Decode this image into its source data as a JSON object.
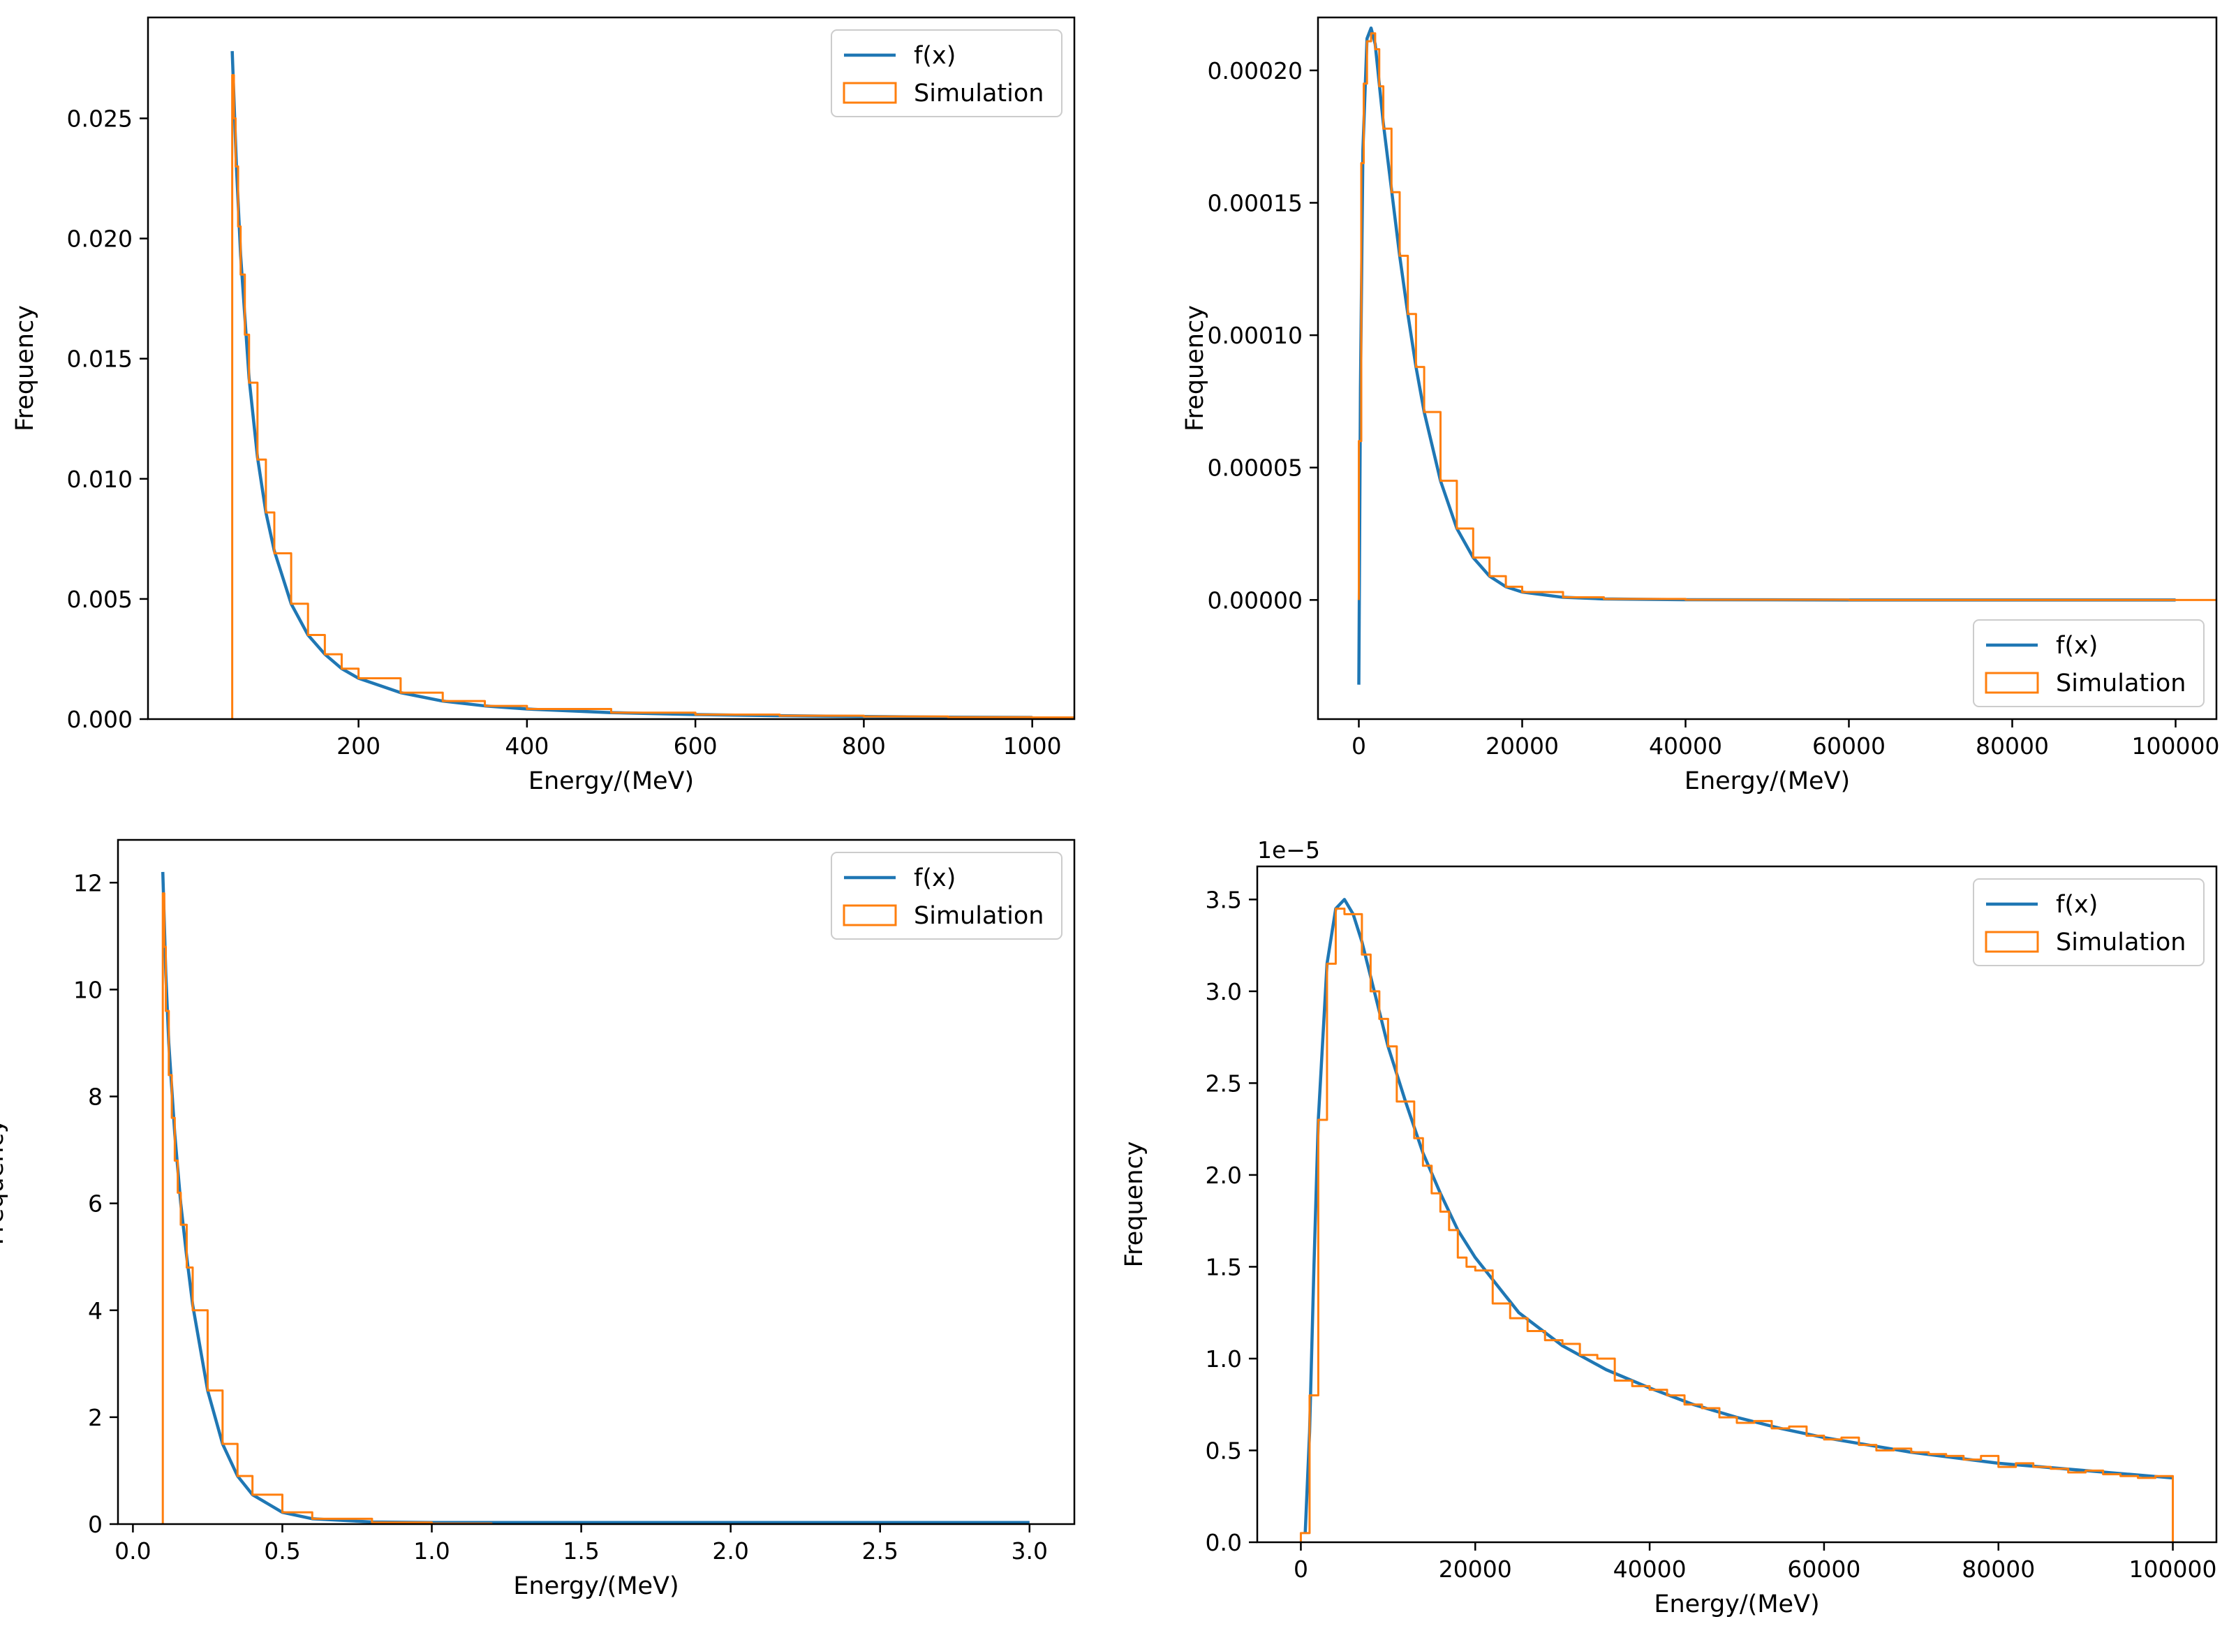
{
  "figure": {
    "background": "#ffffff"
  },
  "colors": {
    "fx": "#1f77b4",
    "simulation": "#ff7f0e"
  },
  "chart_data": [
    {
      "id": "top-left",
      "type": "line",
      "xlabel": "Energy/(MeV)",
      "ylabel": "Frequency",
      "xlim": [
        -50,
        1050
      ],
      "ylim": [
        0,
        0.0292
      ],
      "xticks": [
        200,
        400,
        600,
        800,
        1000
      ],
      "xtick_labels": [
        "200",
        "400",
        "600",
        "800",
        "1000"
      ],
      "yticks": [
        0,
        0.005,
        0.01,
        0.015,
        0.02,
        0.025
      ],
      "ytick_labels": [
        "0.000",
        "0.005",
        "0.010",
        "0.015",
        "0.020",
        "0.025"
      ],
      "offset_text": "",
      "grid": false,
      "legend": {
        "position": "top-right",
        "entries": [
          "f(x)",
          "Simulation"
        ]
      },
      "series": [
        {
          "name": "f(x)",
          "kind": "line",
          "x": [
            50,
            55,
            60,
            70,
            80,
            90,
            100,
            120,
            140,
            160,
            180,
            200,
            250,
            300,
            350,
            400,
            500,
            600,
            700,
            800,
            900,
            1000
          ],
          "y": [
            0.0278,
            0.023,
            0.0193,
            0.0142,
            0.0109,
            0.0086,
            0.007,
            0.0048,
            0.0035,
            0.0027,
            0.0021,
            0.0017,
            0.0011,
            0.00075,
            0.00055,
            0.00042,
            0.00027,
            0.00019,
            0.00014,
            0.00011,
            8e-05,
            7e-05
          ]
        },
        {
          "name": "Simulation",
          "kind": "step",
          "x": [
            50,
            52,
            54,
            57,
            60,
            65,
            70,
            80,
            90,
            100,
            120,
            140,
            160,
            180,
            200,
            250,
            300,
            350,
            400,
            500,
            600,
            700,
            800,
            900,
            1000
          ],
          "y": [
            0.0268,
            0.025,
            0.023,
            0.0205,
            0.0185,
            0.016,
            0.014,
            0.0108,
            0.0086,
            0.0069,
            0.0048,
            0.0035,
            0.0027,
            0.0021,
            0.0017,
            0.0011,
            0.00075,
            0.00055,
            0.00042,
            0.00027,
            0.00019,
            0.00014,
            0.00011,
            8e-05,
            7e-05
          ]
        }
      ]
    },
    {
      "id": "top-right",
      "type": "line",
      "xlabel": "Energy/(MeV)",
      "ylabel": "Frequency",
      "xlim": [
        -5000,
        105000
      ],
      "ylim": [
        -4.5e-05,
        0.00022
      ],
      "xticks": [
        0,
        20000,
        40000,
        60000,
        80000,
        100000
      ],
      "xtick_labels": [
        "0",
        "20000",
        "40000",
        "60000",
        "80000",
        "100000"
      ],
      "yticks": [
        0,
        5e-05,
        0.0001,
        0.00015,
        0.0002
      ],
      "ytick_labels": [
        "0.00000",
        "0.00005",
        "0.00010",
        "0.00015",
        "0.00020"
      ],
      "offset_text": "",
      "grid": false,
      "legend": {
        "position": "bottom-right",
        "entries": [
          "f(x)",
          "Simulation"
        ]
      },
      "series": [
        {
          "name": "f(x)",
          "kind": "line",
          "x": [
            0,
            200,
            500,
            1000,
            1500,
            2000,
            2500,
            3000,
            4000,
            5000,
            6000,
            7000,
            8000,
            10000,
            12000,
            14000,
            16000,
            18000,
            20000,
            25000,
            30000,
            40000,
            60000,
            80000,
            100000
          ],
          "y": [
            -3.2e-05,
            8e-05,
            0.00017,
            0.000212,
            0.000216,
            0.00021,
            0.000195,
            0.00018,
            0.000155,
            0.00013,
            0.000108,
            8.8e-05,
            7.1e-05,
            4.5e-05,
            2.7e-05,
            1.6e-05,
            9e-06,
            5e-06,
            3e-06,
            1e-06,
            4e-07,
            1e-07,
            0,
            0,
            0
          ]
        },
        {
          "name": "Simulation",
          "kind": "step",
          "x": [
            0,
            300,
            600,
            1000,
            1500,
            2000,
            2500,
            3000,
            4000,
            5000,
            6000,
            7000,
            8000,
            10000,
            12000,
            14000,
            16000,
            18000,
            20000,
            25000,
            30000,
            40000,
            60000,
            80000,
            100000
          ],
          "y": [
            6e-05,
            0.000165,
            0.000195,
            0.000211,
            0.000214,
            0.000208,
            0.000194,
            0.000178,
            0.000154,
            0.00013,
            0.000108,
            8.8e-05,
            7.1e-05,
            4.5e-05,
            2.7e-05,
            1.6e-05,
            9e-06,
            5e-06,
            3e-06,
            1e-06,
            4e-07,
            1e-07,
            0,
            0,
            0
          ]
        }
      ]
    },
    {
      "id": "bottom-left",
      "type": "line",
      "xlabel": "Energy/(MeV)",
      "ylabel": "Frequency",
      "xlim": [
        -0.05,
        3.15
      ],
      "ylim": [
        0,
        12.8
      ],
      "xticks": [
        0,
        0.5,
        1.0,
        1.5,
        2.0,
        2.5,
        3.0
      ],
      "xtick_labels": [
        "0.0",
        "0.5",
        "1.0",
        "1.5",
        "2.0",
        "2.5",
        "3.0"
      ],
      "yticks": [
        0,
        2,
        4,
        6,
        8,
        10,
        12
      ],
      "ytick_labels": [
        "0",
        "2",
        "4",
        "6",
        "8",
        "10",
        "12"
      ],
      "offset_text": "",
      "grid": false,
      "legend": {
        "position": "top-right",
        "entries": [
          "f(x)",
          "Simulation"
        ]
      },
      "series": [
        {
          "name": "f(x)",
          "kind": "line",
          "x": [
            0.1,
            0.11,
            0.12,
            0.14,
            0.16,
            0.18,
            0.2,
            0.25,
            0.3,
            0.35,
            0.4,
            0.5,
            0.6,
            0.8,
            1.0,
            1.5,
            2.0,
            2.5,
            3.0
          ],
          "y": [
            12.2,
            10.3,
            9.0,
            7.3,
            6.0,
            5.0,
            4.1,
            2.5,
            1.5,
            0.9,
            0.55,
            0.22,
            0.1,
            0.04,
            0.03,
            0.03,
            0.03,
            0.03,
            0.03
          ]
        },
        {
          "name": "Simulation",
          "kind": "step",
          "x": [
            0.1,
            0.105,
            0.11,
            0.12,
            0.13,
            0.14,
            0.15,
            0.16,
            0.18,
            0.2,
            0.25,
            0.3,
            0.35,
            0.4,
            0.5,
            0.6,
            0.8,
            1.0
          ],
          "y": [
            11.8,
            10.8,
            9.6,
            8.4,
            7.6,
            6.8,
            6.2,
            5.6,
            4.8,
            4.0,
            2.5,
            1.5,
            0.9,
            0.55,
            0.22,
            0.1,
            0.03,
            0.01
          ]
        }
      ]
    },
    {
      "id": "bottom-right",
      "type": "line",
      "xlabel": "Energy/(MeV)",
      "ylabel": "Frequency",
      "xlim": [
        -5000,
        105000
      ],
      "ylim": [
        0,
        3.68
      ],
      "xticks": [
        0,
        20000,
        40000,
        60000,
        80000,
        100000
      ],
      "xtick_labels": [
        "0",
        "20000",
        "40000",
        "60000",
        "80000",
        "100000"
      ],
      "yticks": [
        0,
        0.5,
        1.0,
        1.5,
        2.0,
        2.5,
        3.0,
        3.5
      ],
      "ytick_labels": [
        "0.0",
        "0.5",
        "1.0",
        "1.5",
        "2.0",
        "2.5",
        "3.0",
        "3.5"
      ],
      "offset_text": "1e−5",
      "grid": false,
      "legend": {
        "position": "top-right",
        "entries": [
          "f(x)",
          "Simulation"
        ]
      },
      "series": [
        {
          "name": "f(x)",
          "kind": "line",
          "x": [
            500,
            1000,
            1500,
            2000,
            3000,
            4000,
            5000,
            6000,
            7000,
            8000,
            10000,
            12000,
            14000,
            16000,
            18000,
            20000,
            25000,
            30000,
            35000,
            40000,
            45000,
            50000,
            55000,
            60000,
            65000,
            70000,
            75000,
            80000,
            85000,
            90000,
            95000,
            100000
          ],
          "y": [
            0.05,
            0.6,
            1.5,
            2.3,
            3.15,
            3.45,
            3.5,
            3.42,
            3.27,
            3.08,
            2.7,
            2.4,
            2.12,
            1.9,
            1.7,
            1.55,
            1.25,
            1.07,
            0.94,
            0.84,
            0.75,
            0.68,
            0.62,
            0.57,
            0.53,
            0.49,
            0.46,
            0.43,
            0.41,
            0.39,
            0.37,
            0.35
          ]
        },
        {
          "name": "Simulation",
          "kind": "step",
          "x": [
            0,
            1000,
            2000,
            3000,
            4000,
            5000,
            6000,
            7000,
            8000,
            9000,
            10000,
            11000,
            12000,
            13000,
            14000,
            15000,
            16000,
            17000,
            18000,
            19000,
            20000,
            22000,
            24000,
            26000,
            28000,
            30000,
            32000,
            34000,
            36000,
            38000,
            40000,
            42000,
            44000,
            46000,
            48000,
            50000,
            52000,
            54000,
            56000,
            58000,
            60000,
            62000,
            64000,
            66000,
            68000,
            70000,
            72000,
            74000,
            76000,
            78000,
            80000,
            82000,
            84000,
            86000,
            88000,
            90000,
            92000,
            94000,
            96000,
            98000
          ],
          "y": [
            0.05,
            0.8,
            2.3,
            3.15,
            3.45,
            3.42,
            3.42,
            3.2,
            3.0,
            2.85,
            2.7,
            2.4,
            2.4,
            2.2,
            2.05,
            1.9,
            1.8,
            1.7,
            1.55,
            1.5,
            1.48,
            1.3,
            1.22,
            1.15,
            1.1,
            1.08,
            1.02,
            1.0,
            0.88,
            0.85,
            0.83,
            0.8,
            0.75,
            0.73,
            0.68,
            0.65,
            0.66,
            0.62,
            0.63,
            0.58,
            0.56,
            0.57,
            0.53,
            0.5,
            0.51,
            0.49,
            0.48,
            0.47,
            0.45,
            0.47,
            0.41,
            0.43,
            0.41,
            0.4,
            0.38,
            0.39,
            0.37,
            0.36,
            0.35,
            0.36
          ]
        }
      ]
    }
  ]
}
